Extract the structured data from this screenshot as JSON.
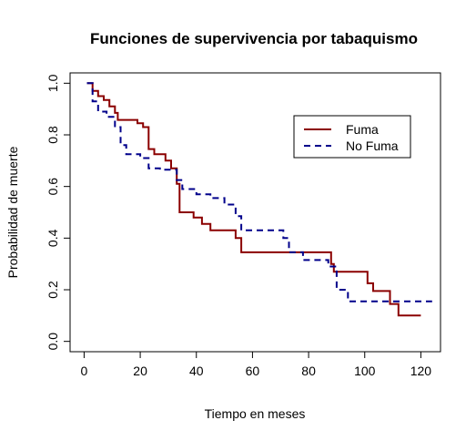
{
  "chart_data": {
    "type": "line",
    "title": "Funciones de supervivencia por tabaquismo",
    "xlabel": "Tiempo en meses",
    "ylabel": "Probabilidad de muerte",
    "xlim": [
      -5,
      127
    ],
    "ylim": [
      -0.04,
      1.04
    ],
    "x_ticks": [
      0,
      20,
      40,
      60,
      80,
      100,
      120
    ],
    "y_ticks": [
      0.0,
      0.2,
      0.4,
      0.6,
      0.8,
      1.0
    ],
    "x_tick_labels": [
      "0",
      "20",
      "40",
      "60",
      "80",
      "100",
      "120"
    ],
    "y_tick_labels": [
      "0.0",
      "0.2",
      "0.4",
      "0.6",
      "0.8",
      "1.0"
    ],
    "legend": {
      "position": "top-right"
    },
    "series": [
      {
        "name": "Fuma",
        "color": "#8b0000",
        "line_style": "solid",
        "steps": [
          [
            1,
            1.0
          ],
          [
            3,
            0.97
          ],
          [
            5,
            0.95
          ],
          [
            7,
            0.935
          ],
          [
            9,
            0.91
          ],
          [
            11,
            0.885
          ],
          [
            12,
            0.858
          ],
          [
            19,
            0.845
          ],
          [
            21,
            0.83
          ],
          [
            23,
            0.745
          ],
          [
            25,
            0.725
          ],
          [
            29,
            0.7
          ],
          [
            31,
            0.67
          ],
          [
            33,
            0.61
          ],
          [
            34,
            0.5
          ],
          [
            39,
            0.48
          ],
          [
            42,
            0.455
          ],
          [
            45,
            0.43
          ],
          [
            54,
            0.4
          ],
          [
            56,
            0.345
          ],
          [
            88,
            0.3
          ],
          [
            89,
            0.27
          ],
          [
            97,
            0.27
          ],
          [
            101,
            0.225
          ],
          [
            103,
            0.195
          ],
          [
            109,
            0.145
          ],
          [
            112,
            0.1
          ],
          [
            120,
            0.1
          ]
        ]
      },
      {
        "name": "No Fuma",
        "color": "#00008b",
        "line_style": "dashed",
        "steps": [
          [
            1,
            1.0
          ],
          [
            3,
            0.93
          ],
          [
            5,
            0.89
          ],
          [
            8,
            0.87
          ],
          [
            11,
            0.83
          ],
          [
            13,
            0.76
          ],
          [
            15,
            0.725
          ],
          [
            20,
            0.71
          ],
          [
            23,
            0.67
          ],
          [
            27,
            0.665
          ],
          [
            33,
            0.625
          ],
          [
            35,
            0.59
          ],
          [
            40,
            0.57
          ],
          [
            45,
            0.555
          ],
          [
            50,
            0.53
          ],
          [
            54,
            0.485
          ],
          [
            56,
            0.43
          ],
          [
            63,
            0.43
          ],
          [
            71,
            0.4
          ],
          [
            73,
            0.345
          ],
          [
            78,
            0.315
          ],
          [
            86,
            0.315
          ],
          [
            87,
            0.29
          ],
          [
            90,
            0.2
          ],
          [
            94,
            0.155
          ],
          [
            107,
            0.155
          ],
          [
            112,
            0.155
          ],
          [
            124,
            0.155
          ]
        ]
      }
    ]
  }
}
